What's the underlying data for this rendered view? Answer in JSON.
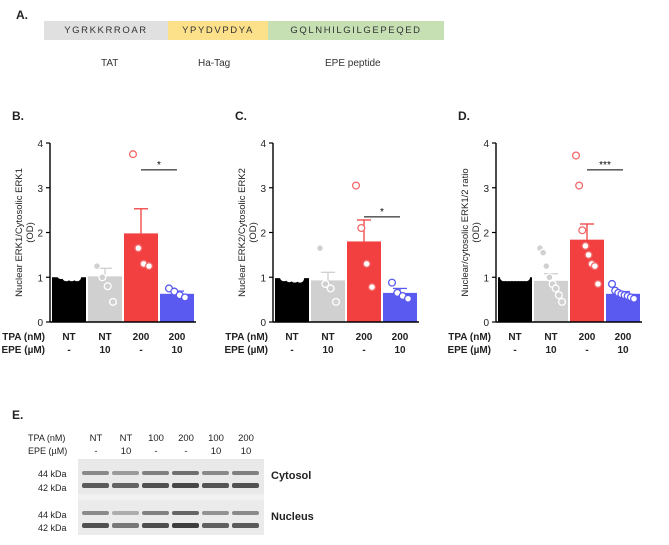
{
  "figure": {
    "colors": {
      "black": "#000000",
      "gray": "#d0d0d0",
      "red": "#f24040",
      "blue": "#5a5af0",
      "tat": "#e0e0e0",
      "ha": "#fde08a",
      "epe": "#c6e0b4"
    },
    "panelA": {
      "letter": "A.",
      "segments": [
        {
          "seq": "YGRKKRROAR",
          "label": "TAT"
        },
        {
          "seq": "YPYDVPDYA",
          "label": "Ha-Tag"
        },
        {
          "seq": "GQLNHILGILGEPEQED",
          "label": "EPE peptide"
        }
      ]
    },
    "row_labels": {
      "tpa": "TPA (nM)",
      "epe": "EPE (µM)"
    },
    "panelE": {
      "letter": "E.",
      "tpa_label": "TPA (nM)",
      "epe_label": "EPE (µM)",
      "lanes": [
        {
          "tpa": "NT",
          "epe": "-"
        },
        {
          "tpa": "NT",
          "epe": "10"
        },
        {
          "tpa": "100",
          "epe": "-"
        },
        {
          "tpa": "200",
          "epe": "-"
        },
        {
          "tpa": "100",
          "epe": "10"
        },
        {
          "tpa": "200",
          "epe": "10"
        }
      ],
      "blots": [
        {
          "name": "Cytosol",
          "markers": [
            "44 kDa",
            "42 kDa"
          ]
        },
        {
          "name": "Nucleus",
          "markers": [
            "44 kDa",
            "42 kDa"
          ]
        }
      ]
    }
  },
  "chart_data": [
    {
      "type": "bar",
      "panel": "B.",
      "ylabel": "Nuclear ERK1/Cytosolic ERK1\n(OD)",
      "ylim": [
        0,
        4
      ],
      "yticks": [
        0,
        1,
        2,
        3,
        4
      ],
      "categories": [
        {
          "tpa": "NT",
          "epe": "-"
        },
        {
          "tpa": "NT",
          "epe": "10"
        },
        {
          "tpa": "200",
          "epe": "-"
        },
        {
          "tpa": "200",
          "epe": "10"
        }
      ],
      "values": [
        1.0,
        1.02,
        1.98,
        0.63
      ],
      "errors": [
        0.05,
        0.18,
        0.55,
        0.06
      ],
      "points": [
        [
          1.05,
          1.0,
          1.0,
          1.0
        ],
        [
          1.25,
          1.0,
          0.8,
          0.45
        ],
        [
          3.75,
          1.65,
          1.3,
          1.25
        ],
        [
          0.75,
          0.68,
          0.6,
          0.55
        ]
      ],
      "significance": [
        {
          "from": 2,
          "to": 3,
          "y": 3.4,
          "label": "*"
        }
      ]
    },
    {
      "type": "bar",
      "panel": "C.",
      "ylabel": "Nuclear ERK2/Cytosolic ERK2\n(OD)",
      "ylim": [
        0,
        4
      ],
      "yticks": [
        0,
        1,
        2,
        3,
        4
      ],
      "categories": [
        {
          "tpa": "NT",
          "epe": "-"
        },
        {
          "tpa": "NT",
          "epe": "10"
        },
        {
          "tpa": "200",
          "epe": "-"
        },
        {
          "tpa": "200",
          "epe": "10"
        }
      ],
      "values": [
        0.98,
        0.93,
        1.8,
        0.65
      ],
      "errors": [
        0.03,
        0.18,
        0.48,
        0.1
      ],
      "points": [
        [
          1.0,
          0.98,
          0.97,
          0.97
        ],
        [
          1.65,
          0.85,
          0.75,
          0.45
        ],
        [
          3.05,
          2.1,
          1.3,
          0.78
        ],
        [
          0.88,
          0.65,
          0.58,
          0.52
        ]
      ],
      "significance": [
        {
          "from": 2,
          "to": 3,
          "y": 2.35,
          "label": "*"
        }
      ]
    },
    {
      "type": "bar",
      "panel": "D.",
      "ylabel": "Nuclear/cytosolic ERK1/2 ratio\n(OD)",
      "ylim": [
        0,
        4
      ],
      "yticks": [
        0,
        1,
        2,
        3,
        4
      ],
      "categories": [
        {
          "tpa": "NT",
          "epe": "-"
        },
        {
          "tpa": "NT",
          "epe": "10"
        },
        {
          "tpa": "200",
          "epe": "-"
        },
        {
          "tpa": "200",
          "epe": "10"
        }
      ],
      "values": [
        1.0,
        0.92,
        1.84,
        0.63
      ],
      "errors": [
        0.02,
        0.16,
        0.35,
        0.05
      ],
      "points": [
        [
          1.0,
          1.0,
          1.0,
          1.0,
          1.0,
          1.0,
          1.0,
          1.0
        ],
        [
          1.65,
          1.55,
          1.25,
          1.0,
          0.85,
          0.75,
          0.6,
          0.45
        ],
        [
          3.72,
          3.05,
          2.05,
          1.7,
          1.5,
          1.3,
          1.25,
          0.85
        ],
        [
          0.85,
          0.7,
          0.65,
          0.62,
          0.6,
          0.58,
          0.55,
          0.52
        ]
      ],
      "significance": [
        {
          "from": 2,
          "to": 3,
          "y": 3.4,
          "label": "***"
        }
      ]
    }
  ]
}
